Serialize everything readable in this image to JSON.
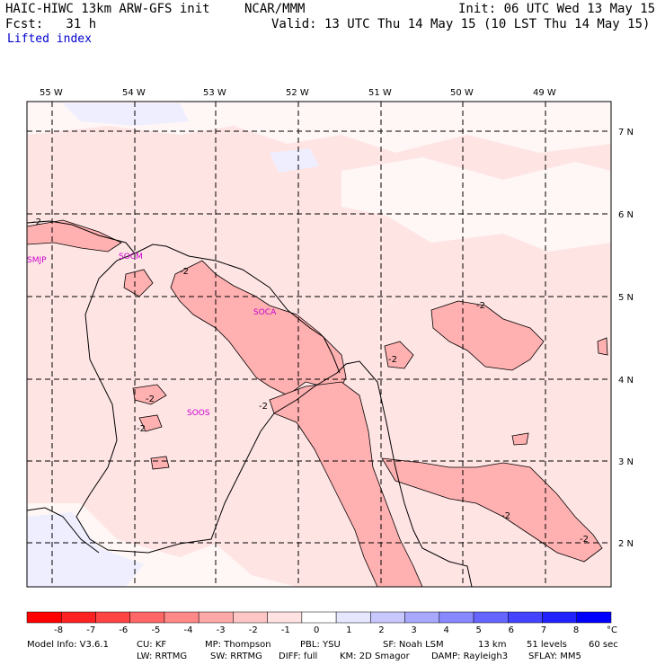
{
  "header": {
    "model": "HAIC-HIWC 13km ARW-GFS init",
    "agency": "NCAR/MMM",
    "init": "Init: 06 UTC Wed 13 May 15",
    "fcst": "Fcst:   31 h",
    "valid": "Valid: 13 UTC Thu 14 May 15 (10 LST Thu 14 May 15)",
    "field": "Lifted index"
  },
  "map": {
    "lon_labels": [
      "55 W",
      "54 W",
      "53 W",
      "52 W",
      "51 W",
      "50 W",
      "49 W"
    ],
    "lat_labels": [
      "7 N",
      "6 N",
      "5 N",
      "4 N",
      "3 N",
      "2 N"
    ],
    "stations": [
      "SMJP",
      "SOCM",
      "SOCA",
      "SOOS"
    ],
    "contour_labels": [
      "-2",
      "-2",
      "-2",
      "-2",
      "-2",
      "-2",
      "-2",
      "-2",
      "-2"
    ]
  },
  "colorbar": {
    "ticks": [
      "-8",
      "-7",
      "-6",
      "-5",
      "-4",
      "-3",
      "-2",
      "-1",
      "0",
      "1",
      "2",
      "3",
      "4",
      "5",
      "6",
      "7",
      "8"
    ],
    "unit": "°C",
    "colors": [
      "#ff0000",
      "#ff2222",
      "#ff4444",
      "#ff6666",
      "#ff8888",
      "#ffa8a8",
      "#ffc6c6",
      "#ffe2e2",
      "#ffffff",
      "#e6e6ff",
      "#c8c8ff",
      "#a8a8ff",
      "#8888ff",
      "#6666ff",
      "#4444ff",
      "#2222ff",
      "#0000ff"
    ]
  },
  "footer": {
    "line1": [
      "Model Info: V3.6.1",
      "CU: KF",
      "MP: Thompson",
      "PBL: YSU",
      "SF: Noah LSM",
      "13 km",
      "51 levels",
      "60 sec"
    ],
    "line2": [
      "LW: RRTMG",
      "SW: RRTMG",
      "DIFF: full",
      "KM: 2D Smagor",
      "DAMP: Rayleigh3",
      "SFLAY: MM5"
    ]
  }
}
